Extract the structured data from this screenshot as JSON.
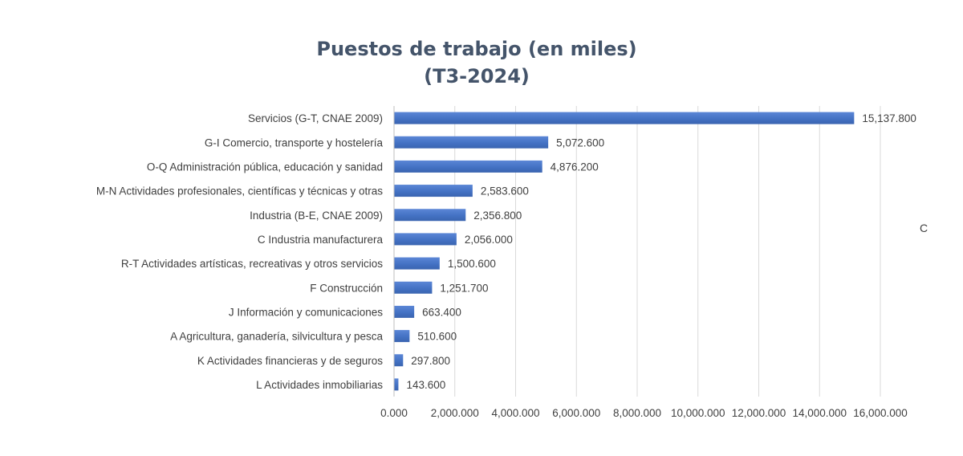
{
  "title_lines": [
    "Puestos de trabajo (en miles)",
    "(T3-2024)"
  ],
  "edge_text": "C",
  "colors": {
    "bar": "#4472c4",
    "bar_light": "#5b86d6",
    "title": "#44546a",
    "text": "#404040",
    "grid": "#d9d9d9"
  },
  "chart_data": {
    "type": "bar",
    "orientation": "horizontal",
    "title": "Puestos de trabajo (en miles) (T3-2024)",
    "categories": [
      "Servicios (G-T, CNAE 2009)",
      "G-I Comercio, transporte y hostelería",
      "O-Q Administración pública, educación y sanidad",
      "M-N Actividades profesionales, científicas y técnicas y otras",
      "Industria (B-E, CNAE 2009)",
      "C Industria manufacturera",
      "R-T Actividades artísticas, recreativas y otros servicios",
      "F Construcción",
      "J Información y comunicaciones",
      "A Agricultura, ganadería, silvicultura y pesca",
      "K Actividades financieras y de seguros",
      "L Actividades inmobiliarias"
    ],
    "values": [
      15137.8,
      5072.6,
      4876.2,
      2583.6,
      2356.8,
      2056.0,
      1500.6,
      1251.7,
      663.4,
      510.6,
      297.8,
      143.6
    ],
    "value_labels": [
      "15,137.800",
      "5,072.600",
      "4,876.200",
      "2,583.600",
      "2,356.800",
      "2,056.000",
      "1,500.600",
      "1,251.700",
      "663.400",
      "510.600",
      "297.800",
      "143.600"
    ],
    "xlim": [
      0,
      16000
    ],
    "xticks": [
      0,
      2000,
      4000,
      6000,
      8000,
      10000,
      12000,
      14000,
      16000
    ],
    "xtick_labels": [
      "0.000",
      "2,000.000",
      "4,000.000",
      "6,000.000",
      "8,000.000",
      "10,000.000",
      "12,000.000",
      "14,000.000",
      "16,000.000"
    ],
    "grid": true,
    "legend": "none"
  }
}
